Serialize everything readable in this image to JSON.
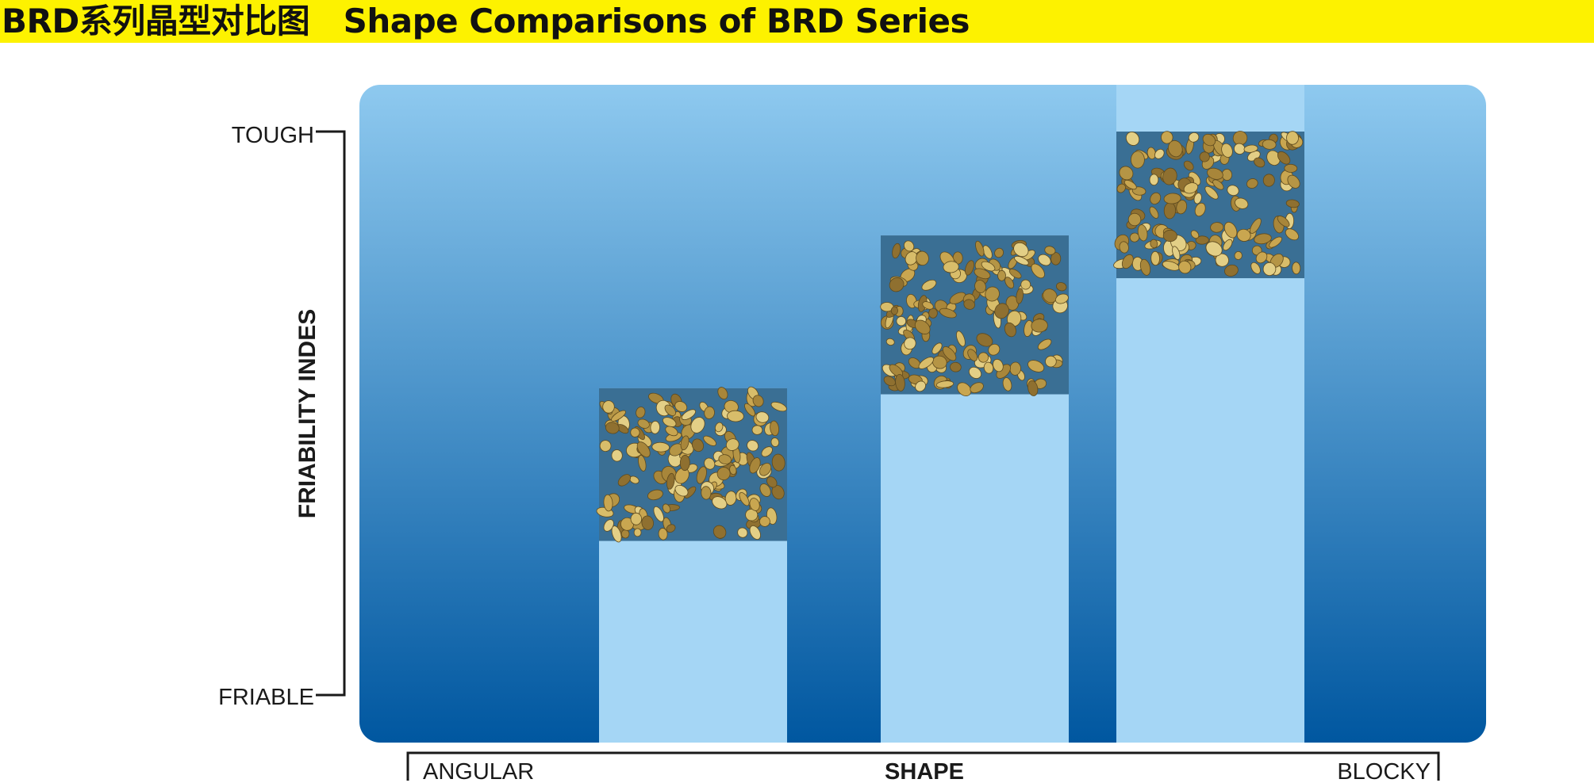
{
  "header": {
    "title": "BRD系列晶型对比图   Shape Comparisons of BRD Series"
  },
  "colors": {
    "title_bar": "#fdf200",
    "panel_top": "#8ec9ef",
    "panel_bottom": "#0057a0",
    "bar_fill": "#a5d6f5",
    "crystal_bg": "#3a6f94",
    "crystal_gold": "#c4a24a"
  },
  "chart_data": {
    "type": "bar",
    "title": "",
    "y_axis": {
      "label": "FRIABILITY INDES",
      "min_label": "FRIABLE",
      "max_label": "TOUGH"
    },
    "x_axis": {
      "label": "SHAPE",
      "min_label": "ANGULAR",
      "max_label": "BLOCKY"
    },
    "ylim": [
      0,
      1
    ],
    "grid": false,
    "series": [
      {
        "values": [
          0.58,
          0.83,
          1.0
        ],
        "sample_image_range": [
          [
            0.33,
            0.58
          ],
          [
            0.57,
            0.83
          ],
          [
            0.76,
            1.0
          ]
        ]
      }
    ]
  }
}
